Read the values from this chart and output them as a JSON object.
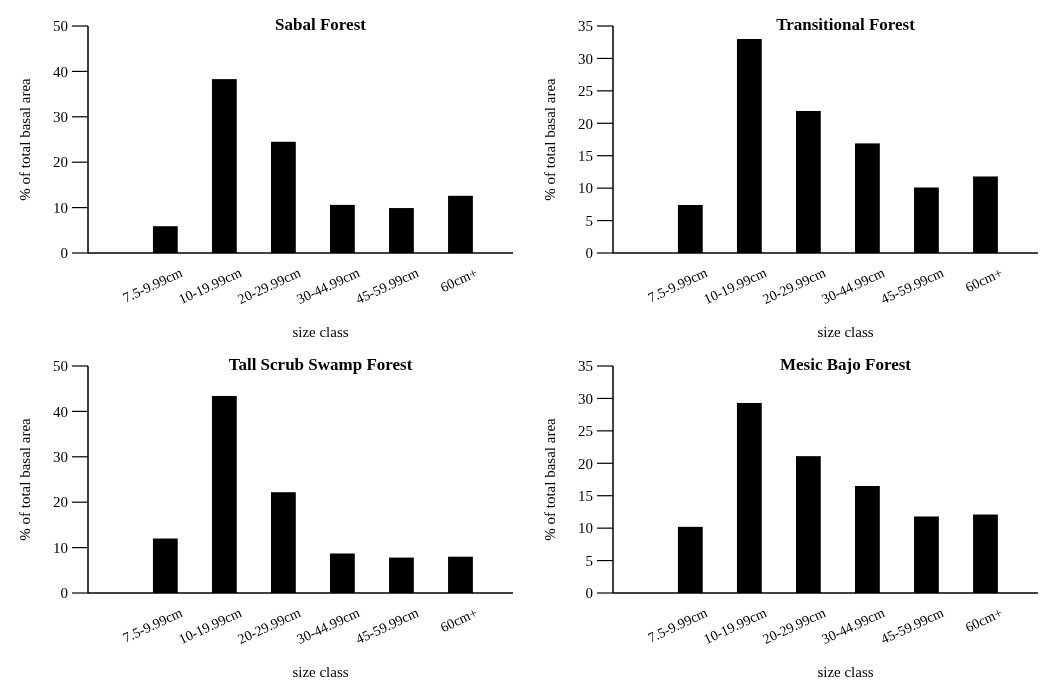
{
  "chart_data": [
    {
      "type": "bar",
      "title": "Sabal Forest",
      "xlabel": "size class",
      "ylabel": "% of total basal area",
      "categories": [
        "7.5-9.99cm",
        "10-19.99cm",
        "20-29.99cm",
        "30-44.99cm",
        "45-59.99cm",
        "60cm+"
      ],
      "values": [
        5.9,
        38.3,
        24.5,
        10.6,
        9.9,
        12.6
      ],
      "color": "#000000",
      "ylim": [
        0,
        50
      ],
      "yticks": [
        0,
        10,
        20,
        30,
        40,
        50
      ],
      "grid": false
    },
    {
      "type": "bar",
      "title": "Transitional Forest",
      "xlabel": "size class",
      "ylabel": "% of total basal area",
      "categories": [
        "7.5-9.99cm",
        "10-19.99cm",
        "20-29.99cm",
        "30-44.99cm",
        "45-59.99cm",
        "60cm+"
      ],
      "values": [
        7.4,
        33.0,
        21.9,
        16.9,
        10.1,
        11.8
      ],
      "color": "#000000",
      "ylim": [
        0,
        35
      ],
      "yticks": [
        0,
        5,
        10,
        15,
        20,
        25,
        30,
        35
      ],
      "grid": false
    },
    {
      "type": "bar",
      "title": "Tall Scrub Swamp Forest",
      "xlabel": "size class",
      "ylabel": "% of total basal area",
      "categories": [
        "7.5-9.99cm",
        "10-19.99cm",
        "20-29.99cm",
        "30-44.99cm",
        "45-59.99cm",
        "60cm+"
      ],
      "values": [
        12.0,
        43.4,
        22.2,
        8.7,
        7.8,
        8.0
      ],
      "color": "#000000",
      "ylim": [
        0,
        50
      ],
      "yticks": [
        0,
        10,
        20,
        30,
        40,
        50
      ],
      "grid": false
    },
    {
      "type": "bar",
      "title": "Mesic Bajo Forest",
      "xlabel": "size class",
      "ylabel": "% of total basal area",
      "categories": [
        "7.5-9.99cm",
        "10-19.99cm",
        "20-29.99cm",
        "30-44.99cm",
        "45-59.99cm",
        "60cm+"
      ],
      "values": [
        10.2,
        29.3,
        21.1,
        16.5,
        11.8,
        12.1
      ],
      "color": "#000000",
      "ylim": [
        0,
        35
      ],
      "yticks": [
        0,
        5,
        10,
        15,
        20,
        25,
        30,
        35
      ],
      "grid": false
    }
  ]
}
